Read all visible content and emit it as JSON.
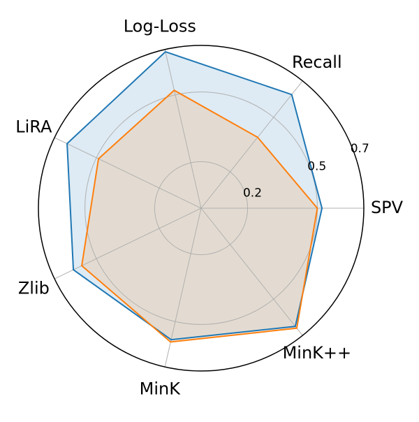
{
  "chart_data": {
    "type": "radar",
    "categories": [
      "SPV",
      "Recall",
      "Log-Loss",
      "LiRA",
      "Zlib",
      "MinK",
      "MinK++"
    ],
    "series": [
      {
        "color": "#1f77b4",
        "values": [
          0.52,
          0.625,
          0.69,
          0.64,
          0.61,
          0.58,
          0.65
        ]
      },
      {
        "color": "#ff7f0e",
        "values": [
          0.5,
          0.39,
          0.52,
          0.49,
          0.57,
          0.59,
          0.66
        ]
      }
    ],
    "rlim": [
      0,
      0.7
    ],
    "rticks": [
      0.2,
      0.5,
      0.7
    ],
    "grid": true
  }
}
